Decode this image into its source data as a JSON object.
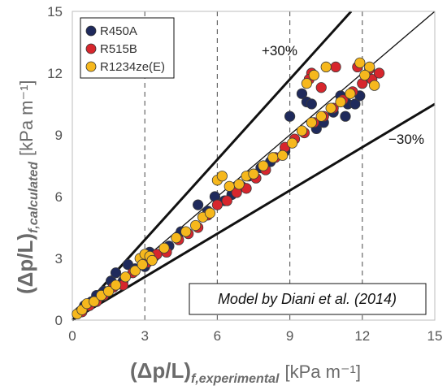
{
  "chart_data": {
    "type": "scatter",
    "title": "",
    "xlabel": {
      "main": "(Δp/L)",
      "sub": "f,experimental",
      "unit": "[kPa m⁻¹]"
    },
    "ylabel": {
      "main": "(Δp/L)",
      "sub": "f,calculated",
      "unit": "[kPa m⁻¹]"
    },
    "xlim": [
      0,
      15
    ],
    "ylim": [
      0,
      15
    ],
    "xticks": [
      "0",
      "3",
      "6",
      "9",
      "12",
      "15"
    ],
    "yticks": [
      "0",
      "3",
      "6",
      "9",
      "12",
      "15"
    ],
    "grid": "vertical dashed lines at x = 3, 6, 9, 12",
    "legend_position": "top-left",
    "reference_lines": [
      {
        "label": "",
        "slope": 1.0
      },
      {
        "label": "+30%",
        "slope": 1.3
      },
      {
        "label": "−30%",
        "slope": 0.7
      }
    ],
    "annotation": "Model by Diani et al. (2014)",
    "series": [
      {
        "name": "R450A",
        "color": "#1f2a5c",
        "points": [
          [
            0.3,
            0.4
          ],
          [
            0.5,
            0.7
          ],
          [
            0.8,
            0.9
          ],
          [
            1.0,
            1.2
          ],
          [
            1.3,
            1.4
          ],
          [
            1.6,
            1.9
          ],
          [
            1.8,
            2.3
          ],
          [
            2.1,
            1.9
          ],
          [
            2.3,
            2.7
          ],
          [
            2.6,
            2.5
          ],
          [
            3.0,
            2.6
          ],
          [
            3.2,
            3.3
          ],
          [
            3.4,
            3.1
          ],
          [
            4.0,
            3.6
          ],
          [
            4.5,
            4.3
          ],
          [
            5.2,
            5.6
          ],
          [
            5.6,
            5.3
          ],
          [
            5.9,
            6.0
          ],
          [
            6.3,
            5.8
          ],
          [
            6.6,
            6.1
          ],
          [
            7.0,
            6.5
          ],
          [
            7.3,
            7.0
          ],
          [
            7.8,
            7.4
          ],
          [
            8.2,
            7.7
          ],
          [
            8.8,
            8.2
          ],
          [
            9.0,
            9.9
          ],
          [
            9.5,
            11.0
          ],
          [
            9.7,
            10.6
          ],
          [
            9.9,
            10.5
          ],
          [
            10.1,
            9.3
          ],
          [
            10.4,
            9.6
          ],
          [
            10.8,
            10.1
          ],
          [
            11.1,
            10.9
          ],
          [
            11.4,
            10.5
          ],
          [
            11.7,
            10.5
          ],
          [
            11.9,
            10.9
          ],
          [
            11.3,
            9.9
          ]
        ]
      },
      {
        "name": "R515B",
        "color": "#d7262d",
        "points": [
          [
            0.4,
            0.4
          ],
          [
            0.7,
            0.7
          ],
          [
            1.0,
            0.9
          ],
          [
            1.3,
            1.2
          ],
          [
            1.7,
            1.6
          ],
          [
            2.1,
            1.7
          ],
          [
            2.5,
            2.3
          ],
          [
            3.1,
            2.8
          ],
          [
            3.5,
            3.2
          ],
          [
            3.9,
            3.3
          ],
          [
            4.4,
            3.9
          ],
          [
            4.8,
            4.2
          ],
          [
            5.2,
            4.5
          ],
          [
            5.6,
            5.1
          ],
          [
            6.0,
            5.6
          ],
          [
            6.4,
            5.8
          ],
          [
            6.8,
            6.2
          ],
          [
            7.2,
            6.4
          ],
          [
            7.6,
            6.9
          ],
          [
            8.0,
            7.3
          ],
          [
            8.4,
            7.9
          ],
          [
            8.8,
            8.4
          ],
          [
            9.2,
            8.8
          ],
          [
            9.6,
            9.1
          ],
          [
            10.0,
            9.6
          ],
          [
            10.4,
            9.9
          ],
          [
            10.8,
            10.3
          ],
          [
            11.2,
            10.7
          ],
          [
            11.6,
            11.1
          ],
          [
            12.0,
            11.5
          ],
          [
            12.4,
            11.7
          ],
          [
            12.7,
            12.0
          ],
          [
            12.3,
            12.2
          ],
          [
            11.8,
            12.3
          ],
          [
            10.9,
            12.3
          ],
          [
            10.3,
            11.3
          ],
          [
            9.9,
            12.0
          ],
          [
            9.8,
            11.7
          ]
        ]
      },
      {
        "name": "R1234ze(E)",
        "color": "#f6b81d",
        "points": [
          [
            0.2,
            0.3
          ],
          [
            0.4,
            0.5
          ],
          [
            0.6,
            0.8
          ],
          [
            0.9,
            0.9
          ],
          [
            1.2,
            1.2
          ],
          [
            1.5,
            1.4
          ],
          [
            1.8,
            1.7
          ],
          [
            2.2,
            2.1
          ],
          [
            2.6,
            2.4
          ],
          [
            2.8,
            3.0
          ],
          [
            3.0,
            3.2
          ],
          [
            3.2,
            3.1
          ],
          [
            2.9,
            2.7
          ],
          [
            3.3,
            2.9
          ],
          [
            3.8,
            3.5
          ],
          [
            4.3,
            4.0
          ],
          [
            4.7,
            4.3
          ],
          [
            5.1,
            4.6
          ],
          [
            5.4,
            5.0
          ],
          [
            5.7,
            5.2
          ],
          [
            6.0,
            6.8
          ],
          [
            6.2,
            7.0
          ],
          [
            6.5,
            6.5
          ],
          [
            6.9,
            6.6
          ],
          [
            7.2,
            7.0
          ],
          [
            7.5,
            7.1
          ],
          [
            7.9,
            7.5
          ],
          [
            8.3,
            7.9
          ],
          [
            8.7,
            8.0
          ],
          [
            9.1,
            8.6
          ],
          [
            9.5,
            9.2
          ],
          [
            9.9,
            9.6
          ],
          [
            10.3,
            9.9
          ],
          [
            10.7,
            10.3
          ],
          [
            11.1,
            10.6
          ],
          [
            11.5,
            11.0
          ],
          [
            11.9,
            12.5
          ],
          [
            12.3,
            12.3
          ],
          [
            12.1,
            11.9
          ],
          [
            12.5,
            11.4
          ],
          [
            10.5,
            12.3
          ],
          [
            10.0,
            11.9
          ],
          [
            9.7,
            11.5
          ]
        ]
      }
    ]
  }
}
